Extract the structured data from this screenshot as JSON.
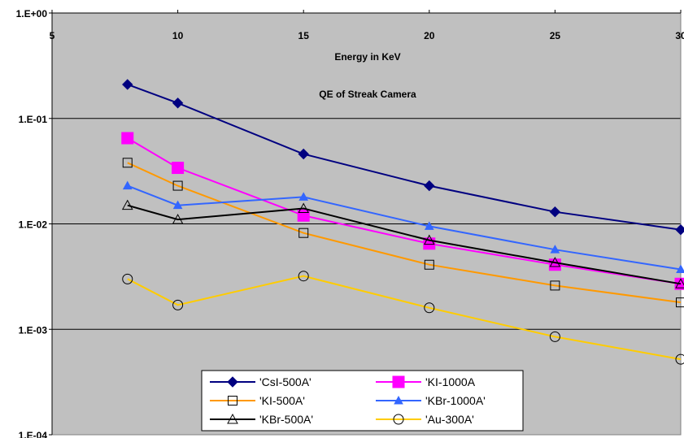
{
  "chart_data": {
    "type": "line",
    "title": "QE of Streak Camera",
    "xlabel": "Energy in KeV",
    "ylabel": "",
    "x_axis_position": "top",
    "xlim": [
      5,
      30
    ],
    "ylim": [
      0.0001,
      1
    ],
    "yscale": "log",
    "grid": "horizontal",
    "legend_placement": "bottom-center",
    "plot_background": "#c0c0c0",
    "x_tick_labels": [
      "5",
      "10",
      "15",
      "20",
      "25",
      "30"
    ],
    "x_tick_values": [
      5,
      10,
      15,
      20,
      25,
      30
    ],
    "y_tick_labels": [
      "1.E+00",
      "1.E-01",
      "1.E-02",
      "1.E-03",
      "1.E-04"
    ],
    "y_tick_values": [
      1,
      0.1,
      0.01,
      0.001,
      0.0001
    ],
    "x": [
      8,
      10,
      15,
      20,
      25,
      30
    ],
    "series": [
      {
        "name": "'CsI-500A'",
        "color": "#000080",
        "marker": "diamond-filled",
        "values": [
          0.21,
          0.14,
          0.046,
          0.023,
          0.013,
          0.0088
        ]
      },
      {
        "name": "'KI-1000A",
        "color": "#ff00ff",
        "marker": "square-filled",
        "values": [
          0.065,
          0.034,
          0.012,
          0.0065,
          0.0041,
          0.0027
        ]
      },
      {
        "name": "'KI-500A'",
        "color": "#ff9900",
        "marker": "square-open",
        "values": [
          0.038,
          0.023,
          0.0082,
          0.0041,
          0.0026,
          0.0018
        ]
      },
      {
        "name": "'KBr-1000A'",
        "color": "#3366ff",
        "marker": "triangle-filled",
        "values": [
          0.023,
          0.015,
          0.018,
          0.0095,
          0.0057,
          0.0037
        ]
      },
      {
        "name": "'KBr-500A'",
        "color": "#000000",
        "marker": "triangle-open",
        "values": [
          0.015,
          0.011,
          0.014,
          0.007,
          0.0043,
          0.0027
        ]
      },
      {
        "name": "'Au-300A'",
        "color": "#ffcc00",
        "marker": "circle-open",
        "values": [
          0.003,
          0.0017,
          0.0032,
          0.0016,
          0.00085,
          0.00052
        ]
      }
    ]
  }
}
